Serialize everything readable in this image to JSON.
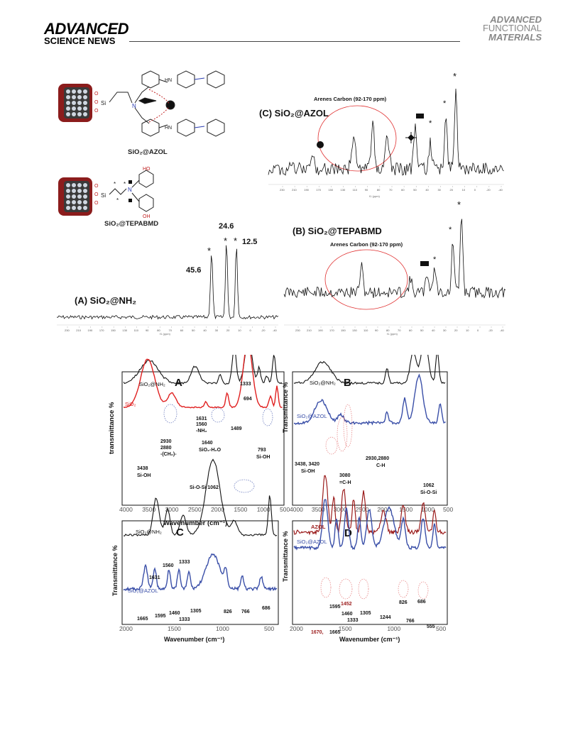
{
  "header": {
    "left_brand_line1": "ADVANCED",
    "left_brand_line2": "SCIENCE NEWS",
    "right_brand_line1": "ADVANCED",
    "right_brand_line2": "FUNCTIONAL",
    "right_brand_line3": "MATERIALS"
  },
  "nmr": {
    "structure_labels": [
      "SiO₂@AZOL",
      "SiO₂@TEPABMD"
    ],
    "struct_atoms": {
      "si": "Si",
      "n": "N",
      "o": "O",
      "hn": "HN",
      "ho": "HO",
      "oh": "OH"
    },
    "panel_a_title": "(A) SiO₂@NH₂",
    "panel_b_title": "(B) SiO₂@TEPABMD",
    "panel_c_title": "(C) SiO₂@AZOL",
    "arenes_label": "Arenes Carbon (92-170 ppm)",
    "peak_labels": [
      "45.6",
      "24.6",
      "12.5"
    ],
    "axis_unit": "f1 (ppm)",
    "tick_labels": [
      "230",
      "210",
      "190",
      "170",
      "150",
      "130",
      "110",
      "90",
      "80",
      "70",
      "60",
      "50",
      "40",
      "30",
      "20",
      "10",
      "0",
      "-20",
      "-40"
    ]
  },
  "ftir": {
    "panels": [
      "A",
      "B",
      "C",
      "D"
    ],
    "xlabel": "Wavenumber (cm⁻¹)",
    "ylabel_lower": "transmittance %",
    "ylabel_upper": "Transmittance %",
    "xticks_top": [
      "4000",
      "3500",
      "3000",
      "2500",
      "2000",
      "1500",
      "1000",
      "500"
    ],
    "xticks_bottom": [
      "2000",
      "1500",
      "1000",
      "500"
    ],
    "series_names": {
      "nh2": "SiO₂@NH₂",
      "sio2": "SiO₂",
      "azol_grafted": "SiO₂@AZOL",
      "azol": "AZOL"
    },
    "annotations_a": [
      "1333",
      "694",
      "1631",
      "1560",
      "-NH₂",
      "1489",
      "1640",
      "SiO₂-H₂O",
      "2930",
      "2880",
      "-(CH₂)-",
      "793",
      "Si-OH",
      "3438",
      "Si-OH",
      "Si-O-Si 1062"
    ],
    "annotations_b": [
      "3438, 3420",
      "Si-OH",
      "3080",
      "=C-H",
      "2930,2880",
      "C-H",
      "1062",
      "Si-O-Si"
    ],
    "annotations_c": [
      "1631",
      "1560",
      "1333",
      "1665",
      "1595",
      "1460",
      "1333",
      "1305",
      "826",
      "766",
      "686"
    ],
    "annotations_d": [
      "1452",
      "1595",
      "1460",
      "1333",
      "1305",
      "1244",
      "826",
      "686",
      "766",
      "555",
      "1670,",
      "1665"
    ]
  },
  "colors": {
    "red": "#e02020",
    "blue": "#3a4fa8",
    "darkred": "#9b1c1c",
    "black": "#111111"
  },
  "chart_data": [
    {
      "type": "line",
      "title": "(A) SiO₂@NH₂",
      "xlabel": "f1 (ppm)",
      "xlim": [
        240,
        -45
      ],
      "peaks_ppm": [
        45.6,
        24.6,
        12.5
      ]
    },
    {
      "type": "line",
      "title": "(B) SiO₂@TEPABMD",
      "xlabel": "f1 (ppm)",
      "xlim": [
        240,
        -45
      ]
    },
    {
      "type": "line",
      "title": "(C) SiO₂@AZOL",
      "xlabel": "f1 (ppm)",
      "xlim": [
        240,
        -45
      ]
    },
    {
      "type": "line",
      "title": "A",
      "xlabel": "Wavenumber (cm⁻¹)",
      "ylabel": "transmittance %",
      "xlim": [
        4000,
        400
      ],
      "series": [
        {
          "name": "SiO₂@NH₂"
        },
        {
          "name": "SiO₂"
        }
      ],
      "annotated_bands_cm1": [
        3438,
        2930,
        2880,
        1640,
        1631,
        1560,
        1489,
        1333,
        1062,
        793,
        694
      ]
    },
    {
      "type": "line",
      "title": "B",
      "xlabel": "Wavenumber (cm⁻¹)",
      "ylabel": "Transmittance %",
      "xlim": [
        4000,
        400
      ],
      "series": [
        {
          "name": "SiO₂@NH₂"
        },
        {
          "name": "SiO₂@AZOL"
        }
      ],
      "annotated_bands_cm1": [
        3438,
        3420,
        3080,
        2930,
        2880,
        1062
      ]
    },
    {
      "type": "line",
      "title": "C",
      "xlabel": "Wavenumber (cm⁻¹)",
      "ylabel": "Transmittance %",
      "xlim": [
        2000,
        400
      ],
      "series": [
        {
          "name": "SiO₂@NH₂"
        },
        {
          "name": "SiO₂@AZOL"
        }
      ],
      "annotated_bands_cm1": [
        1665,
        1631,
        1595,
        1560,
        1460,
        1333,
        1305,
        826,
        766,
        686
      ]
    },
    {
      "type": "line",
      "title": "D",
      "xlabel": "Wavenumber (cm⁻¹)",
      "ylabel": "Transmittance %",
      "xlim": [
        2000,
        400
      ],
      "series": [
        {
          "name": "AZOL"
        },
        {
          "name": "SiO₂@AZOL"
        }
      ],
      "annotated_bands_cm1": [
        1670,
        1665,
        1595,
        1460,
        1452,
        1333,
        1305,
        1244,
        826,
        766,
        686,
        555
      ]
    }
  ]
}
